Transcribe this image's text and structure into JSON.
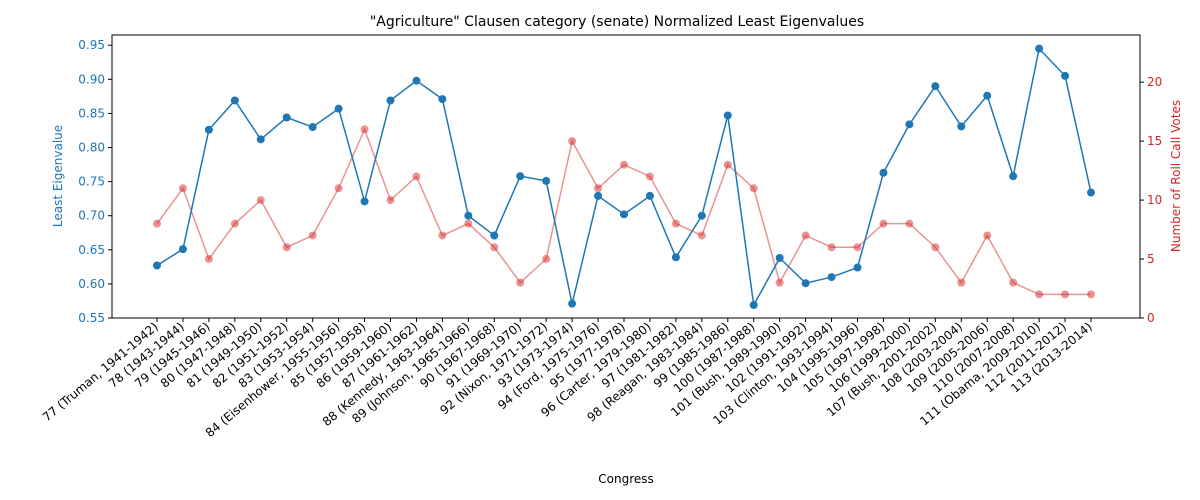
{
  "chart_data": {
    "type": "line",
    "title": "\"Agriculture\" Clausen category (senate) Normalized Least Eigenvalues",
    "xlabel": "Congress",
    "ylabel_left": "Least Eigenvalue",
    "ylabel_right": "Number of Roll Call Votes",
    "ylim_left": [
      0.55,
      0.965
    ],
    "ylim_right": [
      0,
      24
    ],
    "yticks_left": [
      "0.55",
      "0.60",
      "0.65",
      "0.70",
      "0.75",
      "0.80",
      "0.85",
      "0.90",
      "0.95"
    ],
    "yticks_right": [
      "0",
      "5",
      "10",
      "15",
      "20"
    ],
    "grid": false,
    "colors": {
      "left": "#1f77b4",
      "right": "#d62728"
    },
    "categories": [
      "77 (Truman, 1941-1942)",
      "78 (1943-1944)",
      "79 (1945-1946)",
      "80 (1947-1948)",
      "81 (1949-1950)",
      "82 (1951-1952)",
      "83 (1953-1954)",
      "84 (Eisenhower, 1955-1956)",
      "85 (1957-1958)",
      "86 (1959-1960)",
      "87 (1961-1962)",
      "88 (Kennedy, 1963-1964)",
      "89 (Johnson, 1965-1966)",
      "90 (1967-1968)",
      "91 (1969-1970)",
      "92 (Nixon, 1971-1972)",
      "93 (1973-1974)",
      "94 (Ford, 1975-1976)",
      "95 (1977-1978)",
      "96 (Carter, 1979-1980)",
      "97 (1981-1982)",
      "98 (Reagan, 1983-1984)",
      "99 (1985-1986)",
      "100 (1987-1988)",
      "101 (Bush, 1989-1990)",
      "102 (1991-1992)",
      "103 (Clinton, 1993-1994)",
      "104 (1995-1996)",
      "105 (1997-1998)",
      "106 (1999-2000)",
      "107 (Bush, 2001-2002)",
      "108 (2003-2004)",
      "109 (2005-2006)",
      "110 (2007-2008)",
      "111 (Obama, 2009-2010)",
      "112 (2011-2012)",
      "113 (2013-2014)"
    ],
    "series": [
      {
        "name": "Least Eigenvalue",
        "axis": "left",
        "values": [
          0.627,
          0.651,
          0.826,
          0.869,
          0.812,
          0.844,
          0.83,
          0.857,
          0.721,
          0.869,
          0.898,
          0.871,
          0.7,
          0.671,
          0.758,
          0.751,
          0.571,
          0.729,
          0.702,
          0.729,
          0.639,
          0.7,
          0.847,
          0.569,
          0.638,
          0.601,
          0.61,
          0.624,
          0.763,
          0.834,
          0.89,
          0.831,
          0.876,
          0.758,
          0.945,
          0.905,
          0.734
        ]
      },
      {
        "name": "Number of Roll Call Votes",
        "axis": "right",
        "values": [
          8,
          11,
          5,
          8,
          10,
          6,
          7,
          11,
          16,
          10,
          12,
          7,
          8,
          6,
          3,
          5,
          15,
          11,
          13,
          12,
          8,
          7,
          13,
          11,
          3,
          7,
          6,
          6,
          8,
          8,
          6,
          3,
          7,
          3,
          2,
          2,
          2
        ]
      }
    ]
  }
}
